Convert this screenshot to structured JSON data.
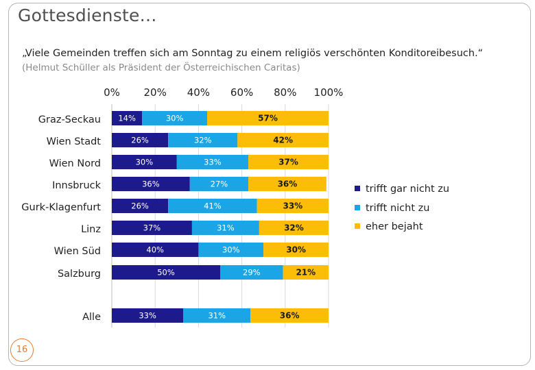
{
  "slide": {
    "title": "Gottesdienste…",
    "quote": "„Viele Gemeinden treffen sich am Sonntag zu einem religiös verschönten Konditoreibesuch.“",
    "source": "(Helmut Schüller als Präsident der Österreichischen Caritas)",
    "page_number": "16"
  },
  "chart_data": {
    "type": "bar",
    "orientation": "horizontal-stacked-100",
    "title": "",
    "xlabel": "",
    "ylabel": "",
    "xlim": [
      0,
      100
    ],
    "x_ticks": [
      "0%",
      "20%",
      "40%",
      "60%",
      "80%",
      "100%"
    ],
    "categories": [
      "Graz-Seckau",
      "Wien Stadt",
      "Wien Nord",
      "Innsbruck",
      "Gurk-Klagenfurt",
      "Linz",
      "Wien Süd",
      "Salzburg",
      "Alle"
    ],
    "series": [
      {
        "name": "trifft gar nicht zu",
        "color": "#1c1a8c",
        "values": [
          14,
          26,
          30,
          36,
          26,
          37,
          40,
          50,
          33
        ],
        "labels": [
          "14%",
          "26%",
          "30%",
          "36%",
          "26%",
          "37%",
          "40%",
          "50%",
          "33%"
        ]
      },
      {
        "name": "trifft nicht zu",
        "color": "#1aa6e6",
        "values": [
          30,
          32,
          33,
          27,
          41,
          31,
          30,
          29,
          31
        ],
        "labels": [
          "30%",
          "32%",
          "33%",
          "27%",
          "41%",
          "31%",
          "30%",
          "29%",
          "31%"
        ]
      },
      {
        "name": "eher bejaht",
        "color": "#fbbd07",
        "values": [
          57,
          42,
          37,
          36,
          33,
          32,
          30,
          21,
          36
        ],
        "labels": [
          "57%",
          "42%",
          "37%",
          "36%",
          "33%",
          "32%",
          "30%",
          "21%",
          "36%"
        ]
      }
    ],
    "legend_position": "right",
    "grid": true
  }
}
